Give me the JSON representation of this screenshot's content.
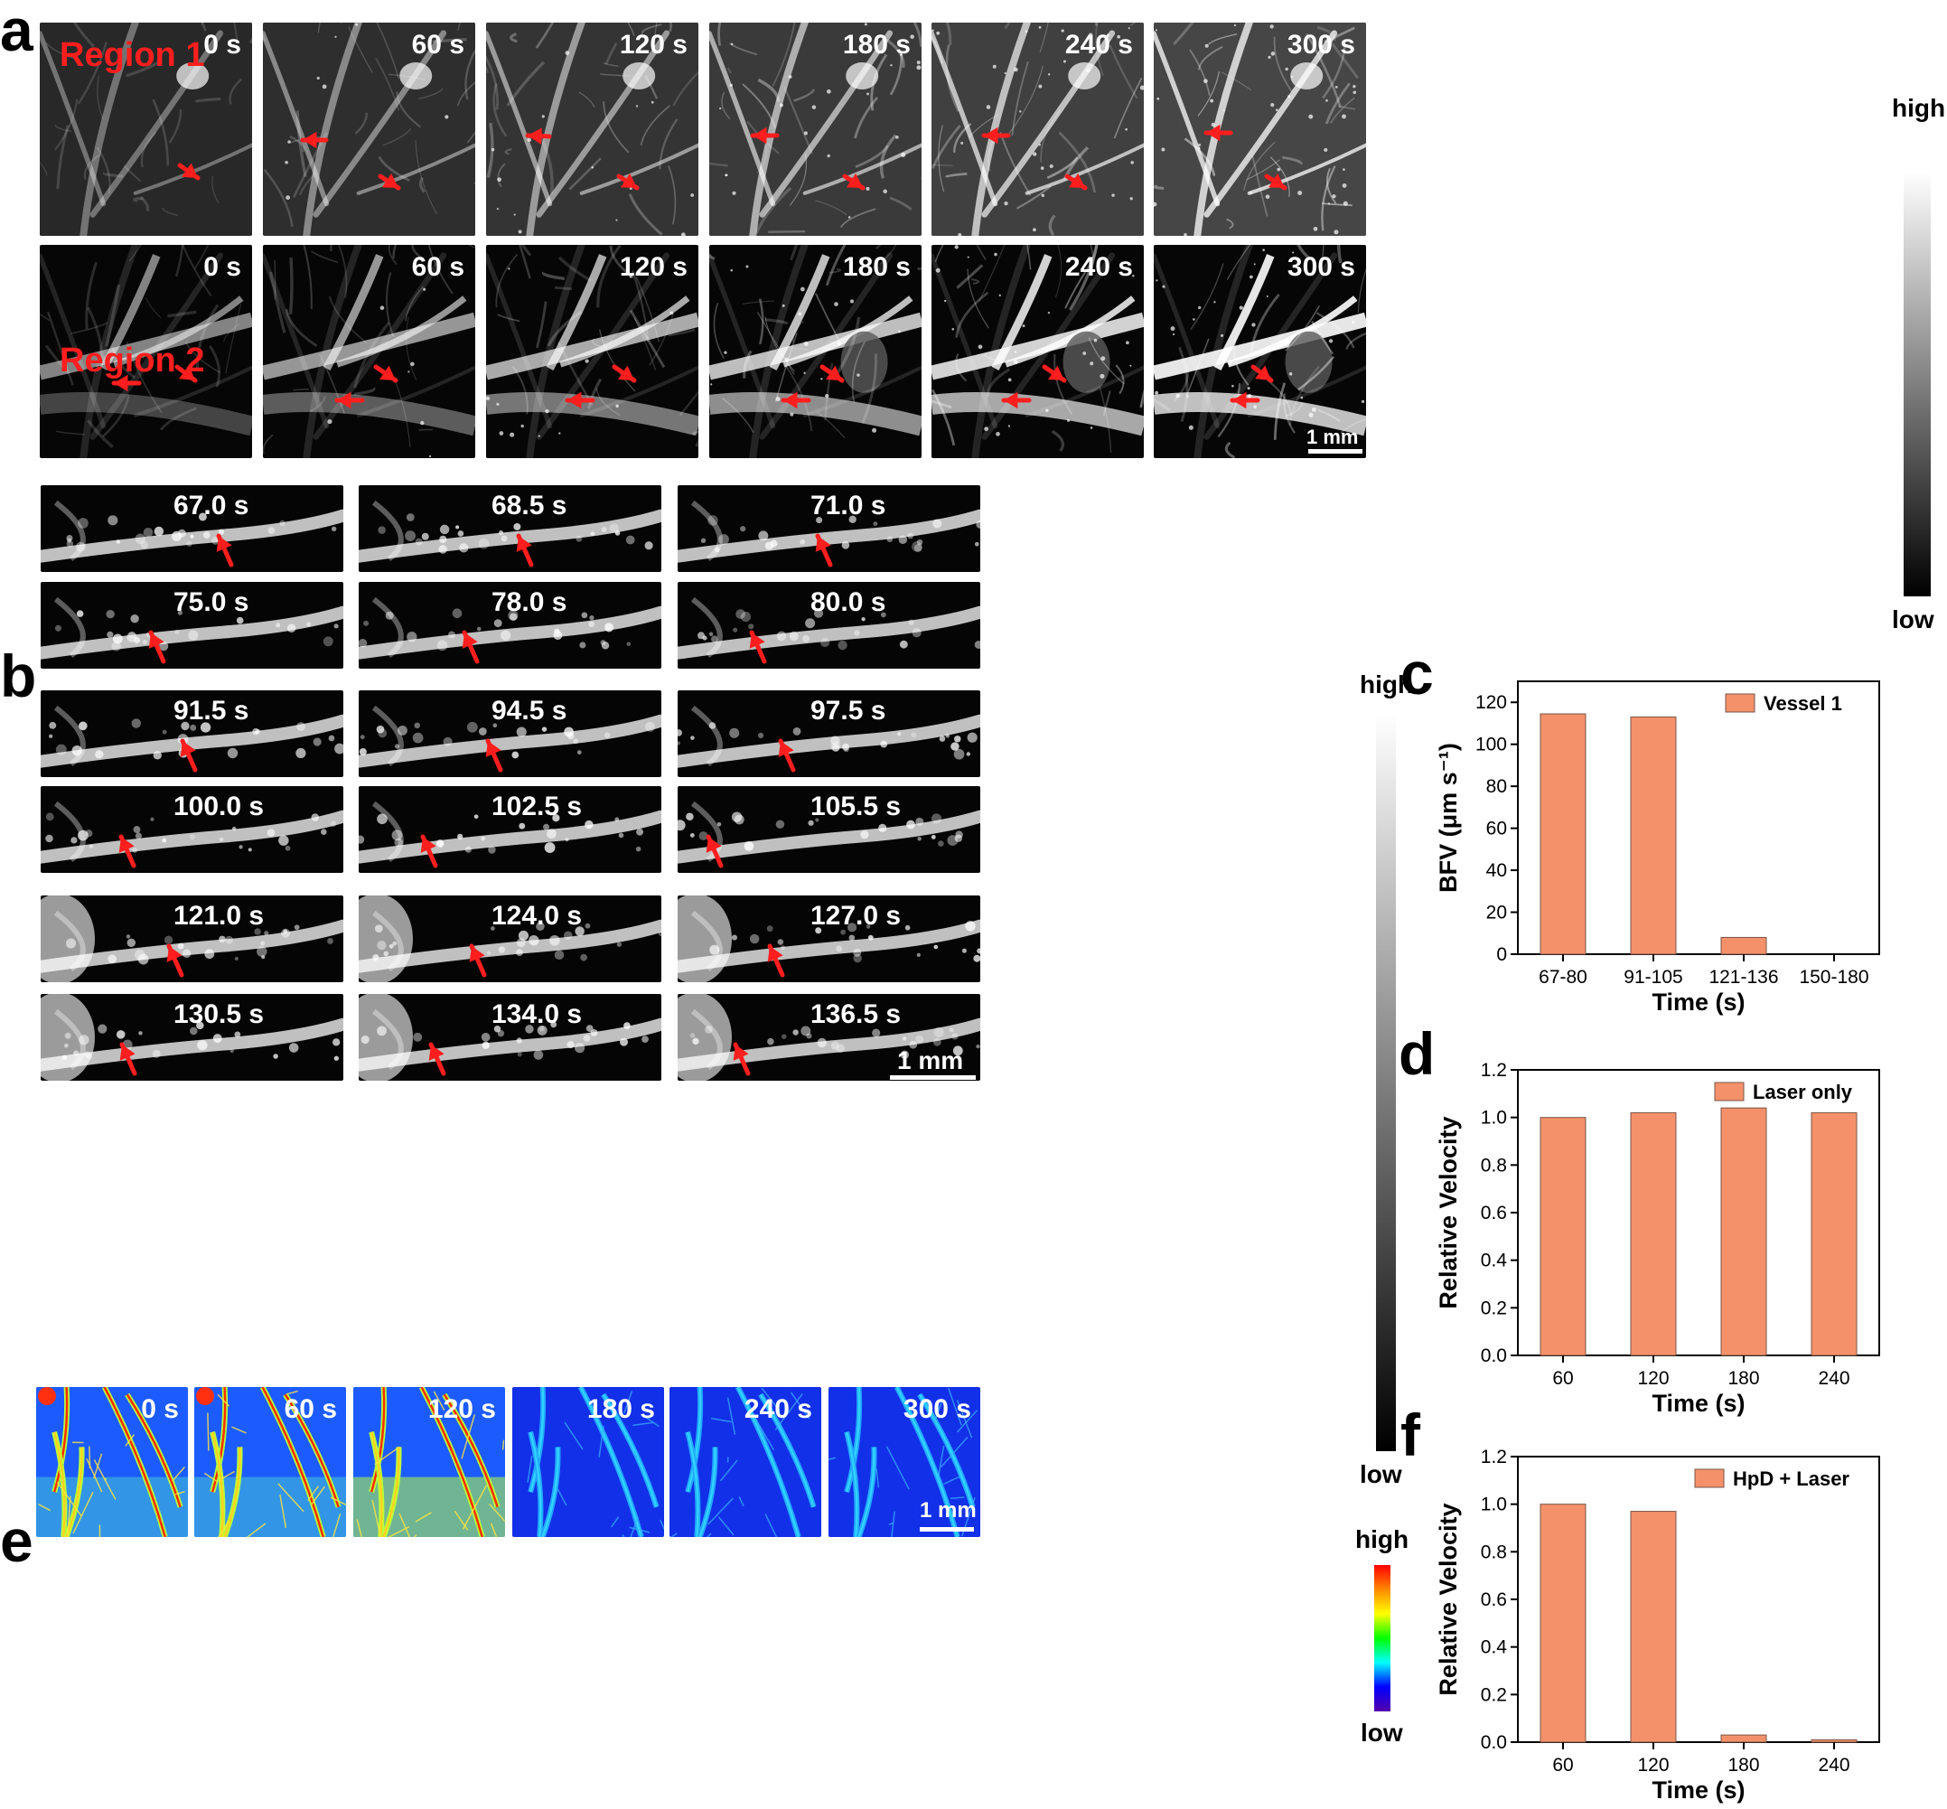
{
  "panel_labels": {
    "a": "a",
    "b": "b",
    "c": "c",
    "d": "d",
    "e": "e",
    "f": "f"
  },
  "panel_a": {
    "row1_region": "Region 1",
    "row2_region": "Region 2",
    "times": [
      "0 s",
      "60 s",
      "120 s",
      "180 s",
      "240 s",
      "300 s"
    ],
    "scale_bar": "1 mm",
    "colorbar_high": "high",
    "colorbar_low": "low"
  },
  "panel_b": {
    "times": [
      "67.0 s",
      "68.5 s",
      "71.0 s",
      "75.0 s",
      "78.0 s",
      "80.0 s",
      "91.5 s",
      "94.5 s",
      "97.5 s",
      "100.0 s",
      "102.5 s",
      "105.5 s",
      "121.0 s",
      "124.0 s",
      "127.0 s",
      "130.5 s",
      "134.0 s",
      "136.5 s"
    ],
    "scale_bar": "1 mm",
    "colorbar_high": "high",
    "colorbar_low": "low"
  },
  "panel_e": {
    "times": [
      "0 s",
      "60 s",
      "120 s",
      "180 s",
      "240 s",
      "300 s"
    ],
    "scale_bar": "1 mm",
    "colorbar_high": "high",
    "colorbar_low": "low"
  },
  "colors": {
    "bar_fill": "#f4916a",
    "bar_stroke": "#7a5548",
    "arrow": "#ff1e1e"
  },
  "chart_data": [
    {
      "id": "c",
      "type": "bar",
      "categories": [
        "67-80",
        "91-105",
        "121-136",
        "150-180"
      ],
      "values": [
        114.5,
        113,
        8,
        0
      ],
      "xlabel": "Time (s)",
      "ylabel": "BFV (μm s⁻¹)",
      "ylim": [
        0,
        130
      ],
      "yticks": [
        0,
        20,
        40,
        60,
        80,
        100,
        120
      ],
      "legend": "Vessel 1",
      "legend_position": "top-right"
    },
    {
      "id": "d",
      "type": "bar",
      "categories": [
        "60",
        "120",
        "180",
        "240"
      ],
      "values": [
        1.0,
        1.02,
        1.04,
        1.02
      ],
      "xlabel": "Time (s)",
      "ylabel": "Relative Velocity",
      "ylim": [
        0,
        1.2
      ],
      "yticks": [
        0.0,
        0.2,
        0.4,
        0.6,
        0.8,
        1.0,
        1.2
      ],
      "legend": "Laser only",
      "legend_position": "top-right"
    },
    {
      "id": "f",
      "type": "bar",
      "categories": [
        "60",
        "120",
        "180",
        "240"
      ],
      "values": [
        1.0,
        0.97,
        0.03,
        0.01
      ],
      "xlabel": "Time (s)",
      "ylabel": "Relative Velocity",
      "ylim": [
        0,
        1.2
      ],
      "yticks": [
        0.0,
        0.2,
        0.4,
        0.6,
        0.8,
        1.0,
        1.2
      ],
      "legend": "HpD + Laser",
      "legend_position": "top-right"
    }
  ]
}
